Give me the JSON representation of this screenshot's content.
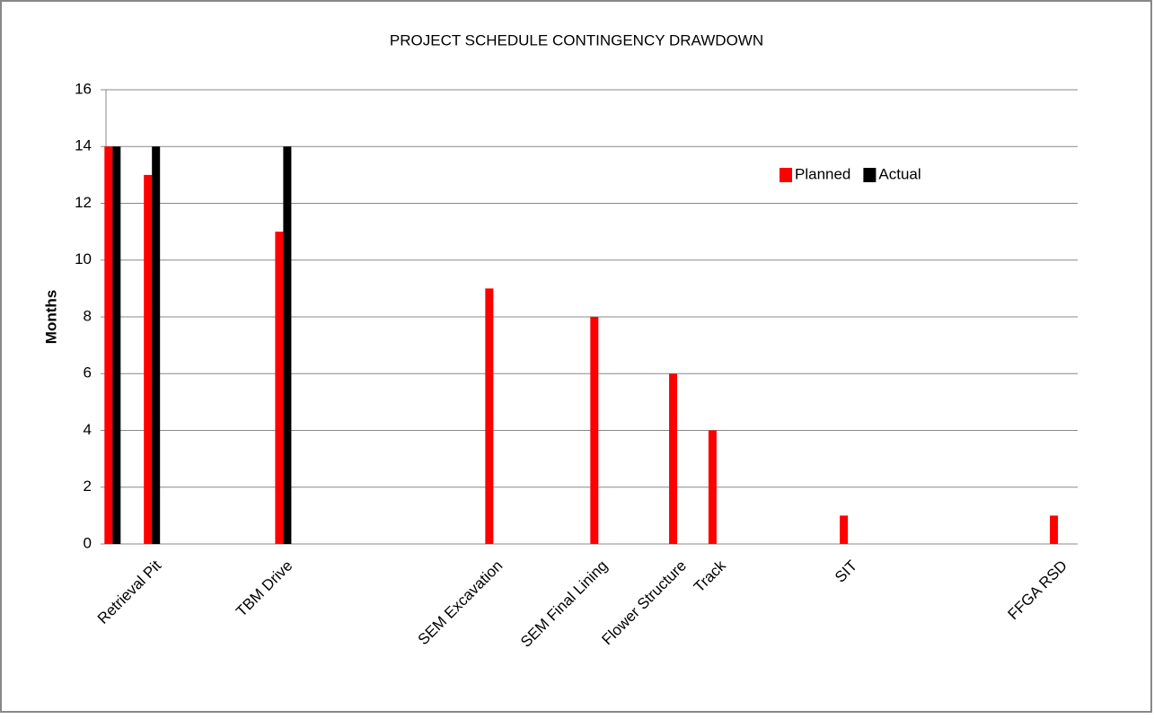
{
  "chart_data": {
    "type": "bar",
    "title": "PROJECT  SCHEDULE  CONTINGENCY  DRAWDOWN",
    "y_label": "Months",
    "categories": [
      null,
      null,
      null,
      "Retrieval Pit",
      null,
      null,
      null,
      null,
      null,
      null,
      null,
      null,
      null,
      "TBM Drive",
      null,
      null,
      null,
      null,
      null,
      null,
      null,
      null,
      null,
      null,
      null,
      null,
      null,
      null,
      null,
      "SEM Excavation",
      null,
      null,
      null,
      null,
      null,
      null,
      null,
      "SEM Final Lining",
      null,
      null,
      null,
      null,
      null,
      "Flower Structure",
      null,
      null,
      "Track",
      null,
      null,
      null,
      null,
      null,
      null,
      null,
      null,
      null,
      "SIT",
      null,
      null,
      null,
      null,
      null,
      null,
      null,
      null,
      null,
      null,
      null,
      null,
      null,
      null,
      null,
      "FFGA RSD",
      null
    ],
    "series": [
      {
        "name": "Planned",
        "color": "#ff0000",
        "values": [
          14,
          null,
          null,
          13,
          null,
          null,
          null,
          null,
          null,
          null,
          null,
          null,
          null,
          11,
          null,
          null,
          null,
          null,
          null,
          null,
          null,
          null,
          null,
          null,
          null,
          null,
          null,
          null,
          null,
          9,
          null,
          null,
          null,
          null,
          null,
          null,
          null,
          8,
          null,
          null,
          null,
          null,
          null,
          6,
          null,
          null,
          4,
          null,
          null,
          null,
          null,
          null,
          null,
          null,
          null,
          null,
          1,
          null,
          null,
          null,
          null,
          null,
          null,
          null,
          null,
          null,
          null,
          null,
          null,
          null,
          null,
          null,
          1,
          null
        ]
      },
      {
        "name": "Actual",
        "color": "#000000",
        "values": [
          14,
          null,
          null,
          14,
          null,
          null,
          null,
          null,
          null,
          null,
          null,
          null,
          null,
          14,
          null,
          null,
          null,
          null,
          null,
          null,
          null,
          null,
          null,
          null,
          null,
          null,
          null,
          null,
          null,
          null,
          null,
          null,
          null,
          null,
          null,
          null,
          null,
          null,
          null,
          null,
          null,
          null,
          null,
          null,
          null,
          null,
          null,
          null,
          null,
          null,
          null,
          null,
          null,
          null,
          null,
          null,
          null,
          null,
          null,
          null,
          null,
          null,
          null,
          null,
          null,
          null,
          null,
          null,
          null,
          null,
          null,
          null,
          null,
          null
        ]
      }
    ],
    "ylim": [
      0,
      16
    ],
    "yticks": [
      0,
      2,
      4,
      6,
      8,
      10,
      12,
      14,
      16
    ],
    "grid": true,
    "legend": "upper right"
  }
}
